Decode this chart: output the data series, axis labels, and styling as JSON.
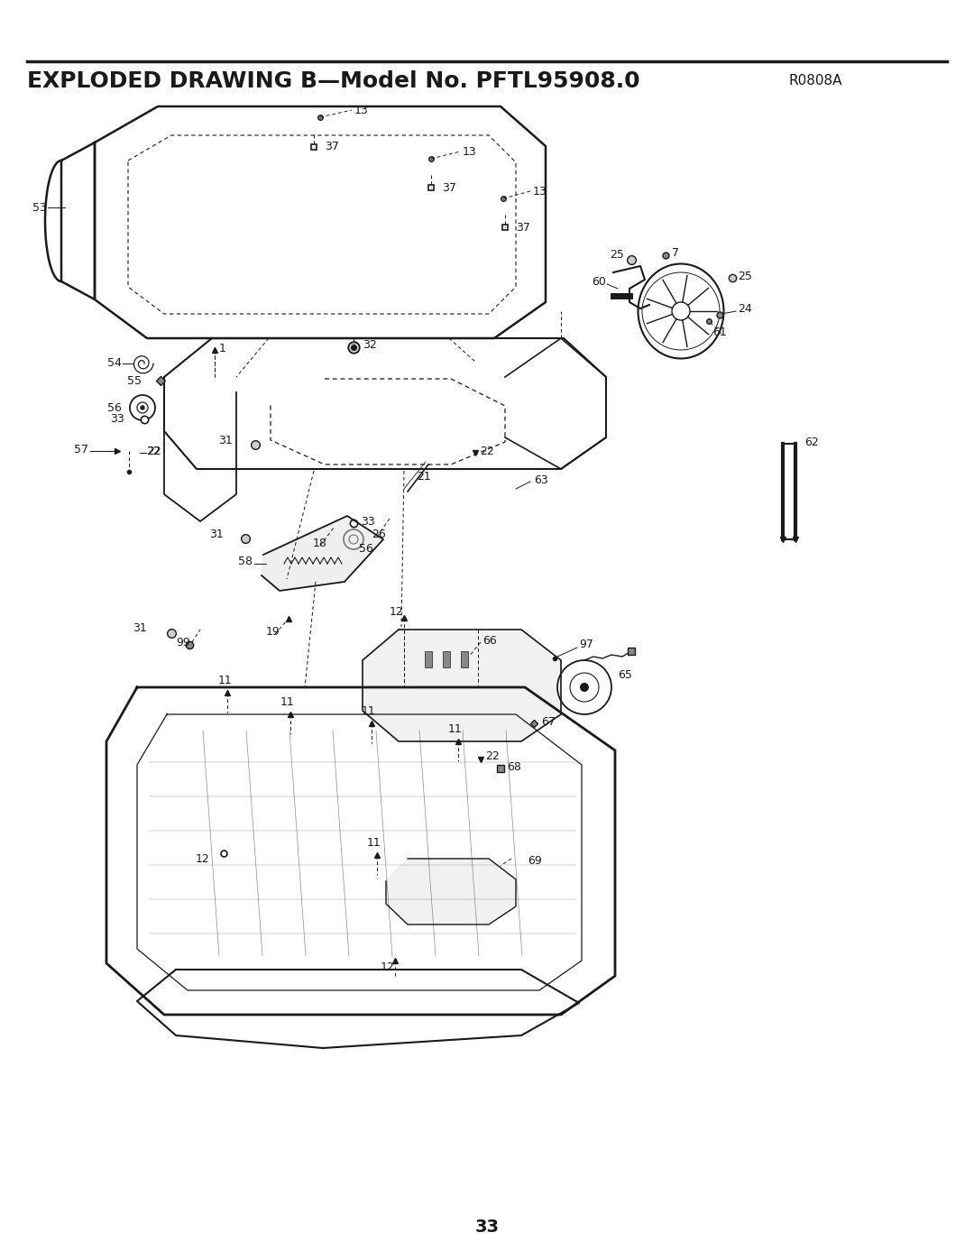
{
  "title_main": "EXPLODED DRAWING B—Model No. PFTL95908.0",
  "title_right": "R0808A",
  "page_number": "33",
  "bg_color": "#ffffff",
  "line_color": "#1a1a1a",
  "text_color": "#1a1a1a",
  "title_fontsize": 18,
  "label_fontsize": 9
}
